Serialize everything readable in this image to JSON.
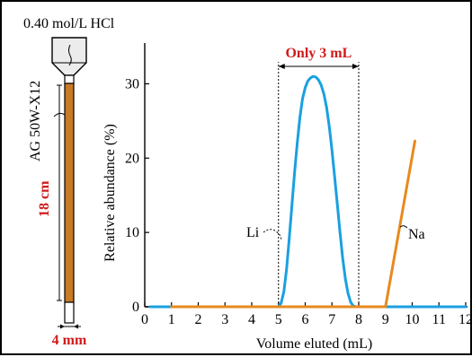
{
  "colors": {
    "li_series": "#1aa0e0",
    "na_series": "#e8891e",
    "column_fill": "#c87a26",
    "red_label": "#d01c1c",
    "axis": "#000000"
  },
  "column": {
    "acid_label": "0.40 mol/L HCl",
    "resin_label": "AG 50W-X12",
    "length_label": "18 cm",
    "width_label": "4 mm"
  },
  "chart_data": {
    "type": "line",
    "xlabel": "Volume eluted (mL)",
    "ylabel": "Relative abundance (%)",
    "xlim": [
      0,
      12
    ],
    "ylim": [
      0,
      35
    ],
    "xticks": [
      "0",
      "1",
      "2",
      "3",
      "4",
      "5",
      "6",
      "7",
      "8",
      "9",
      "10",
      "11",
      "12"
    ],
    "yticks": [
      "0",
      "10",
      "20",
      "30"
    ],
    "grid": false,
    "series": [
      {
        "name": "Li",
        "color": "#1aa0e0",
        "points": [
          [
            0.2,
            0
          ],
          [
            5.0,
            0
          ],
          [
            5.1,
            0.5
          ],
          [
            5.2,
            2
          ],
          [
            5.3,
            5
          ],
          [
            5.4,
            9
          ],
          [
            5.5,
            13.5
          ],
          [
            5.6,
            18
          ],
          [
            5.7,
            22
          ],
          [
            5.8,
            25.5
          ],
          [
            5.9,
            28
          ],
          [
            6.0,
            29.5
          ],
          [
            6.1,
            30.4
          ],
          [
            6.2,
            30.8
          ],
          [
            6.3,
            31.0
          ],
          [
            6.4,
            30.9
          ],
          [
            6.5,
            30.5
          ],
          [
            6.6,
            29.8
          ],
          [
            6.7,
            28.6
          ],
          [
            6.8,
            26.8
          ],
          [
            6.9,
            24.2
          ],
          [
            7.0,
            21
          ],
          [
            7.1,
            17.5
          ],
          [
            7.2,
            13.8
          ],
          [
            7.3,
            10
          ],
          [
            7.4,
            6.6
          ],
          [
            7.5,
            3.8
          ],
          [
            7.6,
            1.8
          ],
          [
            7.7,
            0.6
          ],
          [
            7.8,
            0.1
          ],
          [
            7.9,
            0
          ],
          [
            12,
            0
          ]
        ]
      },
      {
        "name": "Na",
        "color": "#e8891e",
        "points": [
          [
            1.0,
            0
          ],
          [
            9.0,
            0
          ],
          [
            10.1,
            22.3
          ]
        ]
      }
    ],
    "annotations": {
      "window_label": "Only 3 mL",
      "window_range": [
        5.0,
        8.0
      ]
    }
  }
}
